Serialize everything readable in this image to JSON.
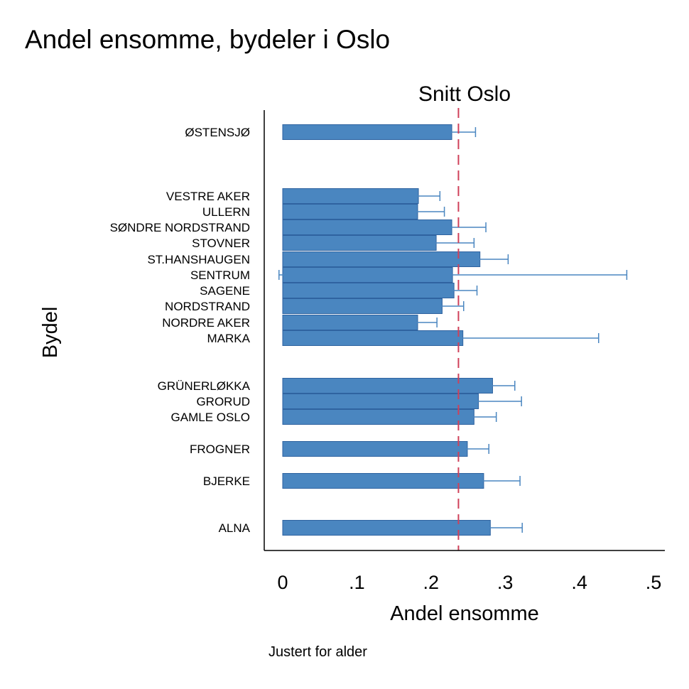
{
  "chart_data": {
    "type": "bar",
    "orientation": "horizontal",
    "title": "Andel ensomme, bydeler i Oslo",
    "xlabel": "Andel ensomme",
    "ylabel": "Bydel",
    "note": "Justert for alder",
    "xlim": [
      0,
      0.5
    ],
    "xticks": [
      0,
      0.1,
      0.2,
      0.3,
      0.4,
      0.5
    ],
    "xtick_labels": [
      "0",
      ".1",
      ".2",
      ".3",
      ".4",
      ".5"
    ],
    "reference_line": {
      "label": "Snitt Oslo",
      "value": 0.237,
      "color": "#d0405a"
    },
    "bar_color": "#4a86c0",
    "bar_edge_color": "#2f63a0",
    "errorbar_color": "#4a86c0",
    "grid": false,
    "categories": [
      {
        "label": "ØSTENSJØ",
        "value": 0.228,
        "ci": [
          0.198,
          0.26
        ]
      },
      {
        "label": "VESTRE AKER",
        "value": 0.183,
        "ci": [
          0.156,
          0.212
        ]
      },
      {
        "label": "ULLERN",
        "value": 0.182,
        "ci": [
          0.146,
          0.218
        ]
      },
      {
        "label": "SØNDRE NORDSTRAND",
        "value": 0.228,
        "ci": [
          0.181,
          0.274
        ]
      },
      {
        "label": "STOVNER",
        "value": 0.207,
        "ci": [
          0.156,
          0.258
        ]
      },
      {
        "label": "ST.HANSHAUGEN",
        "value": 0.266,
        "ci": [
          0.227,
          0.304
        ]
      },
      {
        "label": "SENTRUM",
        "value": 0.229,
        "ci": [
          -0.005,
          0.464
        ]
      },
      {
        "label": "SAGENE",
        "value": 0.231,
        "ci": [
          0.2,
          0.262
        ]
      },
      {
        "label": "NORDSTRAND",
        "value": 0.215,
        "ci": [
          0.186,
          0.244
        ]
      },
      {
        "label": "NORDRE AKER",
        "value": 0.182,
        "ci": [
          0.156,
          0.208
        ]
      },
      {
        "label": "MARKA",
        "value": 0.243,
        "ci": [
          0.06,
          0.426
        ]
      },
      {
        "label": "GRÜNERLØKKA",
        "value": 0.283,
        "ci": [
          0.253,
          0.313
        ]
      },
      {
        "label": "GRORUD",
        "value": 0.264,
        "ci": [
          0.208,
          0.322
        ]
      },
      {
        "label": "GAMLE OSLO",
        "value": 0.258,
        "ci": [
          0.229,
          0.288
        ]
      },
      {
        "label": "FROGNER",
        "value": 0.249,
        "ci": [
          0.221,
          0.278
        ]
      },
      {
        "label": "BJERKE",
        "value": 0.271,
        "ci": [
          0.223,
          0.32
        ]
      },
      {
        "label": "ALNA",
        "value": 0.28,
        "ci": [
          0.237,
          0.323
        ]
      }
    ]
  }
}
